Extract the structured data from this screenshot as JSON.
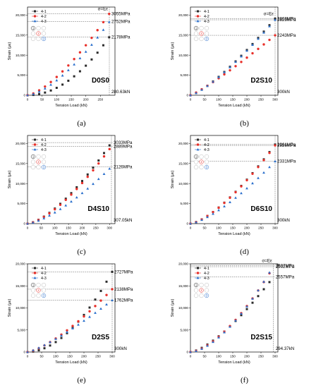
{
  "colors": {
    "s1": "#2b2b2b",
    "s2": "#e8302a",
    "s3": "#2a6fcc",
    "guide": "#555555"
  },
  "figure": {
    "xlabel": "Tension Load (kN)",
    "ylabel": "Strain (με)",
    "stress_label": "σ=Eε",
    "legend": [
      "4-1",
      "4-2",
      "4-3"
    ],
    "circle_numbers": [
      "1",
      "2",
      "3"
    ]
  },
  "chart_data": [
    {
      "type": "scatter",
      "id": "a",
      "caption": "(a)",
      "title": "D0S0",
      "end_load": 280.63,
      "load_label": "280.63kN",
      "show_stress_label": true,
      "xlim": [
        0,
        300
      ],
      "ylim": [
        0,
        22000
      ],
      "xticks": [
        "0",
        "50",
        "100",
        "150",
        "200",
        "250"
      ],
      "yticks": [
        "0",
        "5,000",
        "10,000",
        "15,000",
        "20,000"
      ],
      "annotations": [
        {
          "label": "3055MPa",
          "y": 20370
        },
        {
          "label": "2752MPa",
          "y": 18350
        },
        {
          "label": "2178MPa",
          "y": 14520
        }
      ],
      "series": [
        {
          "name": "4-1",
          "final": 14520,
          "k": 2.0
        },
        {
          "name": "4-2",
          "final": 20370,
          "k": 1.45
        },
        {
          "name": "4-3",
          "final": 18350,
          "k": 1.55
        }
      ]
    },
    {
      "type": "scatter",
      "id": "b",
      "caption": "(b)",
      "title": "D2S10",
      "end_load": 300,
      "load_label": "300kN",
      "show_stress_label": true,
      "xlim": [
        0,
        310
      ],
      "ylim": [
        0,
        22000
      ],
      "xticks": [
        "0",
        "50",
        "100",
        "150",
        "200",
        "250",
        "300"
      ],
      "yticks": [
        "0",
        "5,000",
        "10,000",
        "15,000",
        "20,000"
      ],
      "annotations": [
        {
          "label": "2868MPa",
          "y": 19120
        },
        {
          "label": "2823MPa",
          "y": 18820
        },
        {
          "label": "2243MPa",
          "y": 14950
        }
      ],
      "series": [
        {
          "name": "4-1",
          "final": 19120,
          "k": 1.3
        },
        {
          "name": "4-2",
          "final": 14950,
          "k": 1.15
        },
        {
          "name": "4-3",
          "final": 18820,
          "k": 1.3
        }
      ]
    },
    {
      "type": "scatter",
      "id": "c",
      "caption": "(c)",
      "title": "D4S10",
      "end_load": 307.05,
      "load_label": "307.05kN",
      "show_stress_label": false,
      "xlim": [
        0,
        320
      ],
      "ylim": [
        0,
        22000
      ],
      "xticks": [
        "0",
        "50",
        "100",
        "150",
        "200",
        "250",
        "300"
      ],
      "yticks": [
        "0",
        "5,000",
        "10,000",
        "15,000",
        "20,000"
      ],
      "annotations": [
        {
          "label": "3033MPa",
          "y": 20220
        },
        {
          "label": "2889MPa",
          "y": 19260
        },
        {
          "label": "2126MPa",
          "y": 14170
        }
      ],
      "series": [
        {
          "name": "4-1",
          "final": 20220,
          "k": 1.5
        },
        {
          "name": "4-2",
          "final": 19260,
          "k": 1.5
        },
        {
          "name": "4-3",
          "final": 14170,
          "k": 1.45
        }
      ]
    },
    {
      "type": "scatter",
      "id": "d",
      "caption": "(d)",
      "title": "D6S10",
      "end_load": 300,
      "load_label": "300kN",
      "show_stress_label": false,
      "xlim": [
        0,
        310
      ],
      "ylim": [
        0,
        22000
      ],
      "xticks": [
        "0",
        "50",
        "100",
        "150",
        "200",
        "250",
        "300"
      ],
      "yticks": [
        "0",
        "5,000",
        "10,000",
        "15,000",
        "20,000"
      ],
      "annotations": [
        {
          "label": "2961MPa",
          "y": 19740
        },
        {
          "label": "2926MPa",
          "y": 19510
        },
        {
          "label": "2331MPa",
          "y": 15540
        }
      ],
      "series": [
        {
          "name": "4-1",
          "final": 19740,
          "k": 1.45
        },
        {
          "name": "4-2",
          "final": 19510,
          "k": 1.45
        },
        {
          "name": "4-3",
          "final": 15540,
          "k": 1.4
        }
      ]
    },
    {
      "type": "scatter",
      "id": "e",
      "caption": "(e)",
      "title": "D2S5",
      "end_load": 300,
      "load_label": "300kN",
      "show_stress_label": false,
      "xlim": [
        0,
        310
      ],
      "ylim": [
        0,
        20000
      ],
      "xticks": [
        "0",
        "50",
        "100",
        "150",
        "200",
        "250",
        "300"
      ],
      "yticks": [
        "0",
        "5,000",
        "10,000",
        "15,000",
        "20,000"
      ],
      "annotations": [
        {
          "label": "2727MPa",
          "y": 18180
        },
        {
          "label": "2138MPa",
          "y": 14250
        },
        {
          "label": "1762MPa",
          "y": 11750
        }
      ],
      "series": [
        {
          "name": "4-1",
          "final": 18180,
          "k": 1.9
        },
        {
          "name": "4-2",
          "final": 14250,
          "k": 1.4
        },
        {
          "name": "4-3",
          "final": 11750,
          "k": 1.25
        }
      ]
    },
    {
      "type": "scatter",
      "id": "f",
      "caption": "(f)",
      "title": "D2S15",
      "end_load": 294.37,
      "load_label": "294.37kN",
      "show_stress_label": true,
      "xlim": [
        0,
        310
      ],
      "ylim": [
        0,
        20000
      ],
      "xticks": [
        "0",
        "50",
        "100",
        "150",
        "200",
        "250",
        "300"
      ],
      "yticks": [
        "0",
        "5,000",
        "10,000",
        "15,000",
        "20,000"
      ],
      "annotations": [
        {
          "label": "2937MPa",
          "y": 19580
        },
        {
          "label": "2902MPa",
          "y": 19350
        },
        {
          "label": "2557MPa",
          "y": 17050
        }
      ],
      "series": [
        {
          "name": "4-1",
          "final": 17050,
          "k": 1.45
        },
        {
          "name": "4-2",
          "final": 19350,
          "k": 1.6
        },
        {
          "name": "4-3",
          "final": 19580,
          "k": 1.65
        }
      ]
    }
  ]
}
